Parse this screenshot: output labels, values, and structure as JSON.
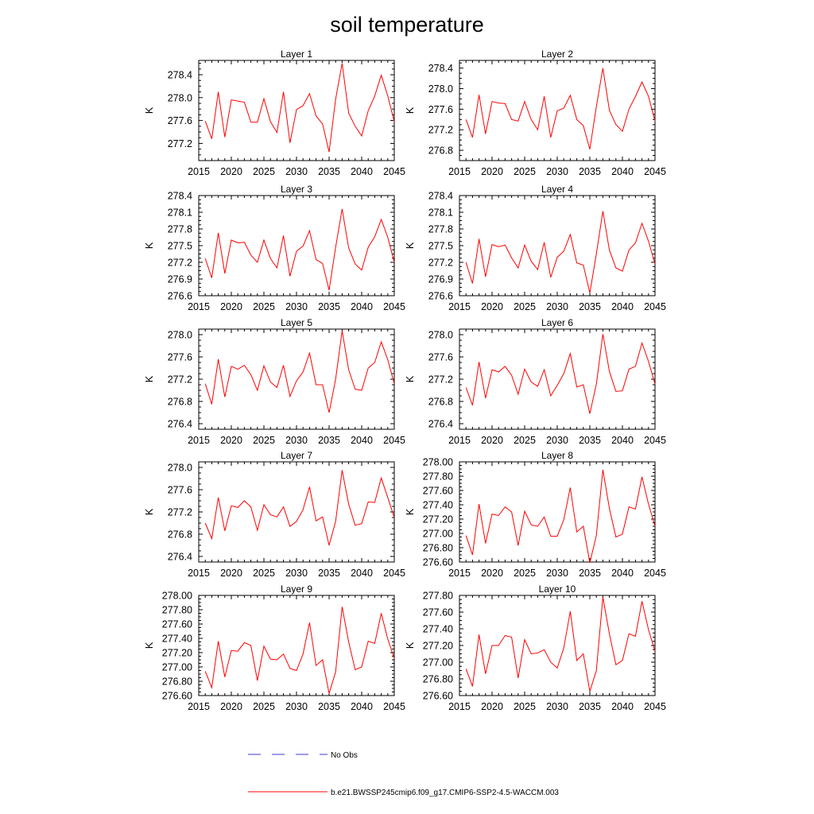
{
  "title": "soil temperature",
  "legend": {
    "items": [
      {
        "label": "No Obs",
        "color": "#3b3bd6",
        "style": "dashed"
      },
      {
        "label": "b.e21.BWSSP245cmip6.f09_g17.CMIP6-SSP2-4.5-WACCM.003",
        "color": "#ff0000",
        "style": "solid"
      }
    ]
  },
  "chart_data": [
    {
      "type": "line",
      "title": "Layer 1",
      "ylabel": "K",
      "xlim": [
        2015,
        2045
      ],
      "ylim": [
        276.9,
        278.65
      ],
      "xticks": [
        2015,
        2020,
        2025,
        2030,
        2035,
        2040,
        2045
      ],
      "xtick_labels": [
        "2015",
        "2020",
        "2025",
        "2030",
        "2035",
        "2040",
        "2045"
      ],
      "yticks": [
        277.2,
        277.6,
        278.0,
        278.4
      ],
      "ytick_labels": [
        "277.2",
        "277.6",
        "278.0",
        "278.4"
      ],
      "x": [
        2016,
        2017,
        2018,
        2019,
        2020,
        2021,
        2022,
        2023,
        2024,
        2025,
        2026,
        2027,
        2028,
        2029,
        2030,
        2031,
        2032,
        2033,
        2034,
        2035,
        2036,
        2037,
        2038,
        2039,
        2040,
        2041,
        2042,
        2043,
        2044,
        2045
      ],
      "series": [
        {
          "color": "#ff0000",
          "values": [
            277.59,
            277.28,
            278.1,
            277.31,
            277.96,
            277.94,
            277.92,
            277.57,
            277.57,
            277.98,
            277.58,
            277.39,
            278.1,
            277.21,
            277.79,
            277.86,
            278.07,
            277.68,
            277.54,
            277.05,
            277.97,
            278.6,
            277.73,
            277.5,
            277.33,
            277.77,
            278.03,
            278.39,
            278.03,
            277.58
          ]
        }
      ]
    },
    {
      "type": "line",
      "title": "Layer 2",
      "ylabel": "K",
      "xlim": [
        2015,
        2045
      ],
      "ylim": [
        276.6,
        278.55
      ],
      "xticks": [
        2015,
        2020,
        2025,
        2030,
        2035,
        2040,
        2045
      ],
      "xtick_labels": [
        "2015",
        "2020",
        "2025",
        "2030",
        "2035",
        "2040",
        "2045"
      ],
      "yticks": [
        276.8,
        277.2,
        277.6,
        278.0,
        278.4
      ],
      "ytick_labels": [
        "276.8",
        "277.2",
        "277.6",
        "278.0",
        "278.4"
      ],
      "x": [
        2016,
        2017,
        2018,
        2019,
        2020,
        2021,
        2022,
        2023,
        2024,
        2025,
        2026,
        2027,
        2028,
        2029,
        2030,
        2031,
        2032,
        2033,
        2034,
        2035,
        2036,
        2037,
        2038,
        2039,
        2040,
        2041,
        2042,
        2043,
        2044,
        2045
      ],
      "series": [
        {
          "color": "#ff0000",
          "values": [
            277.4,
            277.05,
            277.88,
            277.12,
            277.75,
            277.72,
            277.71,
            277.4,
            277.37,
            277.75,
            277.4,
            277.2,
            277.85,
            277.05,
            277.57,
            277.62,
            277.87,
            277.4,
            277.28,
            276.82,
            277.65,
            278.4,
            277.58,
            277.3,
            277.17,
            277.6,
            277.85,
            278.13,
            277.85,
            277.37
          ]
        }
      ]
    },
    {
      "type": "line",
      "title": "Layer 3",
      "ylabel": "K",
      "xlim": [
        2015,
        2045
      ],
      "ylim": [
        276.6,
        278.4
      ],
      "xticks": [
        2015,
        2020,
        2025,
        2030,
        2035,
        2040,
        2045
      ],
      "xtick_labels": [
        "2015",
        "2020",
        "2025",
        "2030",
        "2035",
        "2040",
        "2045"
      ],
      "yticks": [
        276.6,
        276.9,
        277.2,
        277.5,
        277.8,
        278.1,
        278.4
      ],
      "ytick_labels": [
        "276.6",
        "276.9",
        "277.2",
        "277.5",
        "277.8",
        "278.1",
        "278.4"
      ],
      "x": [
        2016,
        2017,
        2018,
        2019,
        2020,
        2021,
        2022,
        2023,
        2024,
        2025,
        2026,
        2027,
        2028,
        2029,
        2030,
        2031,
        2032,
        2033,
        2034,
        2035,
        2036,
        2037,
        2038,
        2039,
        2040,
        2041,
        2042,
        2043,
        2044,
        2045
      ],
      "series": [
        {
          "color": "#ff0000",
          "values": [
            277.27,
            276.92,
            277.73,
            277.0,
            277.6,
            277.55,
            277.56,
            277.33,
            277.2,
            277.6,
            277.27,
            277.1,
            277.68,
            276.95,
            277.4,
            277.49,
            277.77,
            277.25,
            277.18,
            276.7,
            277.47,
            278.16,
            277.46,
            277.17,
            277.06,
            277.47,
            277.66,
            277.97,
            277.65,
            277.2
          ]
        }
      ]
    },
    {
      "type": "line",
      "title": "Layer 4",
      "ylabel": "K",
      "xlim": [
        2015,
        2045
      ],
      "ylim": [
        276.6,
        278.4
      ],
      "xticks": [
        2015,
        2020,
        2025,
        2030,
        2035,
        2040,
        2045
      ],
      "xtick_labels": [
        "2015",
        "2020",
        "2025",
        "2030",
        "2035",
        "2040",
        "2045"
      ],
      "yticks": [
        276.6,
        276.9,
        277.2,
        277.5,
        277.8,
        278.1,
        278.4
      ],
      "ytick_labels": [
        "276.6",
        "276.9",
        "277.2",
        "277.5",
        "277.8",
        "278.1",
        "278.4"
      ],
      "x": [
        2016,
        2017,
        2018,
        2019,
        2020,
        2021,
        2022,
        2023,
        2024,
        2025,
        2026,
        2027,
        2028,
        2029,
        2030,
        2031,
        2032,
        2033,
        2034,
        2035,
        2036,
        2037,
        2038,
        2039,
        2040,
        2041,
        2042,
        2043,
        2044,
        2045
      ],
      "series": [
        {
          "color": "#ff0000",
          "values": [
            277.2,
            276.82,
            277.62,
            276.94,
            277.52,
            277.48,
            277.51,
            277.28,
            277.1,
            277.51,
            277.22,
            277.07,
            277.56,
            276.93,
            277.29,
            277.4,
            277.7,
            277.19,
            277.15,
            276.65,
            277.35,
            278.12,
            277.42,
            277.1,
            277.04,
            277.42,
            277.55,
            277.9,
            277.58,
            277.17
          ]
        }
      ]
    },
    {
      "type": "line",
      "title": "Layer 5",
      "ylabel": "K",
      "xlim": [
        2015,
        2045
      ],
      "ylim": [
        276.3,
        278.1
      ],
      "xticks": [
        2015,
        2020,
        2025,
        2030,
        2035,
        2040,
        2045
      ],
      "xtick_labels": [
        "2015",
        "2020",
        "2025",
        "2030",
        "2035",
        "2040",
        "2045"
      ],
      "yticks": [
        276.4,
        276.8,
        277.2,
        277.6,
        278.0
      ],
      "ytick_labels": [
        "276.4",
        "276.8",
        "277.2",
        "277.6",
        "278.0"
      ],
      "x": [
        2016,
        2017,
        2018,
        2019,
        2020,
        2021,
        2022,
        2023,
        2024,
        2025,
        2026,
        2027,
        2028,
        2029,
        2030,
        2031,
        2032,
        2033,
        2034,
        2035,
        2036,
        2037,
        2038,
        2039,
        2040,
        2041,
        2042,
        2043,
        2044,
        2045
      ],
      "series": [
        {
          "color": "#ff0000",
          "values": [
            277.12,
            276.75,
            277.56,
            276.88,
            277.43,
            277.38,
            277.45,
            277.28,
            277.0,
            277.44,
            277.15,
            277.05,
            277.45,
            276.89,
            277.17,
            277.33,
            277.67,
            277.1,
            277.1,
            276.6,
            277.2,
            278.07,
            277.37,
            277.02,
            277.0,
            277.4,
            277.5,
            277.87,
            277.55,
            277.12
          ]
        }
      ]
    },
    {
      "type": "line",
      "title": "Layer 6",
      "ylabel": "K",
      "xlim": [
        2015,
        2045
      ],
      "ylim": [
        276.3,
        278.1
      ],
      "xticks": [
        2015,
        2020,
        2025,
        2030,
        2035,
        2040,
        2045
      ],
      "xtick_labels": [
        "2015",
        "2020",
        "2025",
        "2030",
        "2035",
        "2040",
        "2045"
      ],
      "yticks": [
        276.4,
        276.8,
        277.2,
        277.6,
        278.0
      ],
      "ytick_labels": [
        "276.4",
        "276.8",
        "277.2",
        "277.6",
        "278.0"
      ],
      "x": [
        2016,
        2017,
        2018,
        2019,
        2020,
        2021,
        2022,
        2023,
        2024,
        2025,
        2026,
        2027,
        2028,
        2029,
        2030,
        2031,
        2032,
        2033,
        2034,
        2035,
        2036,
        2037,
        2038,
        2039,
        2040,
        2041,
        2042,
        2043,
        2044,
        2045
      ],
      "series": [
        {
          "color": "#ff0000",
          "values": [
            277.05,
            276.73,
            277.51,
            276.86,
            277.37,
            277.33,
            277.43,
            277.27,
            276.93,
            277.38,
            277.15,
            277.07,
            277.37,
            276.9,
            277.09,
            277.3,
            277.66,
            277.06,
            277.1,
            276.58,
            277.11,
            278.01,
            277.34,
            276.98,
            276.99,
            277.38,
            277.43,
            277.85,
            277.52,
            277.11
          ]
        }
      ]
    },
    {
      "type": "line",
      "title": "Layer 7",
      "ylabel": "K",
      "xlim": [
        2015,
        2045
      ],
      "ylim": [
        276.3,
        278.1
      ],
      "xticks": [
        2015,
        2020,
        2025,
        2030,
        2035,
        2040,
        2045
      ],
      "xtick_labels": [
        "2015",
        "2020",
        "2025",
        "2030",
        "2035",
        "2040",
        "2045"
      ],
      "yticks": [
        276.4,
        276.8,
        277.2,
        277.6,
        278.0
      ],
      "ytick_labels": [
        "276.4",
        "276.8",
        "277.2",
        "277.6",
        "278.0"
      ],
      "x": [
        2016,
        2017,
        2018,
        2019,
        2020,
        2021,
        2022,
        2023,
        2024,
        2025,
        2026,
        2027,
        2028,
        2029,
        2030,
        2031,
        2032,
        2033,
        2034,
        2035,
        2036,
        2037,
        2038,
        2039,
        2040,
        2041,
        2042,
        2043,
        2044,
        2045
      ],
      "series": [
        {
          "color": "#ff0000",
          "values": [
            277.0,
            276.72,
            277.46,
            276.86,
            277.31,
            277.28,
            277.4,
            277.29,
            276.87,
            277.33,
            277.15,
            277.11,
            277.29,
            276.94,
            277.03,
            277.24,
            277.65,
            277.04,
            277.11,
            276.6,
            277.03,
            277.95,
            277.34,
            276.96,
            276.99,
            277.38,
            277.37,
            277.81,
            277.46,
            277.1
          ]
        }
      ]
    },
    {
      "type": "line",
      "title": "Layer 8",
      "ylabel": "K",
      "xlim": [
        2015,
        2045
      ],
      "ylim": [
        276.6,
        278.0
      ],
      "xticks": [
        2015,
        2020,
        2025,
        2030,
        2035,
        2040,
        2045
      ],
      "xtick_labels": [
        "2015",
        "2020",
        "2025",
        "2030",
        "2035",
        "2040",
        "2045"
      ],
      "yticks": [
        276.6,
        276.8,
        277.0,
        277.2,
        277.4,
        277.6,
        277.8,
        278.0
      ],
      "ytick_labels": [
        "276.60",
        "276.80",
        "277.00",
        "277.20",
        "277.40",
        "277.60",
        "277.80",
        "278.00"
      ],
      "x": [
        2016,
        2017,
        2018,
        2019,
        2020,
        2021,
        2022,
        2023,
        2024,
        2025,
        2026,
        2027,
        2028,
        2029,
        2030,
        2031,
        2032,
        2033,
        2034,
        2035,
        2036,
        2037,
        2038,
        2039,
        2040,
        2041,
        2042,
        2043,
        2044,
        2045
      ],
      "series": [
        {
          "color": "#ff0000",
          "values": [
            276.97,
            276.7,
            277.41,
            276.86,
            277.27,
            277.25,
            277.37,
            277.3,
            276.83,
            277.31,
            277.12,
            277.1,
            277.23,
            276.96,
            276.96,
            277.19,
            277.64,
            277.02,
            277.1,
            276.59,
            276.97,
            277.89,
            277.35,
            276.95,
            276.99,
            277.37,
            277.34,
            277.79,
            277.41,
            277.1
          ]
        }
      ]
    },
    {
      "type": "line",
      "title": "Layer 9",
      "ylabel": "K",
      "xlim": [
        2015,
        2045
      ],
      "ylim": [
        276.6,
        278.0
      ],
      "xticks": [
        2015,
        2020,
        2025,
        2030,
        2035,
        2040,
        2045
      ],
      "xtick_labels": [
        "2015",
        "2020",
        "2025",
        "2030",
        "2035",
        "2040",
        "2045"
      ],
      "yticks": [
        276.6,
        276.8,
        277.0,
        277.2,
        277.4,
        277.6,
        277.8,
        278.0
      ],
      "ytick_labels": [
        "276.60",
        "276.80",
        "277.00",
        "277.20",
        "277.40",
        "277.60",
        "277.80",
        "278.00"
      ],
      "x": [
        2016,
        2017,
        2018,
        2019,
        2020,
        2021,
        2022,
        2023,
        2024,
        2025,
        2026,
        2027,
        2028,
        2029,
        2030,
        2031,
        2032,
        2033,
        2034,
        2035,
        2036,
        2037,
        2038,
        2039,
        2040,
        2041,
        2042,
        2043,
        2044,
        2045
      ],
      "series": [
        {
          "color": "#ff0000",
          "values": [
            276.94,
            276.71,
            277.36,
            276.86,
            277.23,
            277.22,
            277.34,
            277.3,
            276.81,
            277.29,
            277.11,
            277.1,
            277.18,
            276.98,
            276.95,
            277.18,
            277.62,
            277.02,
            277.1,
            276.63,
            276.93,
            277.84,
            277.35,
            276.96,
            277.0,
            277.36,
            277.33,
            277.75,
            277.39,
            277.12
          ]
        }
      ]
    },
    {
      "type": "line",
      "title": "Layer 10",
      "ylabel": "K",
      "xlim": [
        2015,
        2045
      ],
      "ylim": [
        276.6,
        277.8
      ],
      "xticks": [
        2015,
        2020,
        2025,
        2030,
        2035,
        2040,
        2045
      ],
      "xtick_labels": [
        "2015",
        "2020",
        "2025",
        "2030",
        "2035",
        "2040",
        "2045"
      ],
      "yticks": [
        276.6,
        276.8,
        277.0,
        277.2,
        277.4,
        277.6,
        277.8
      ],
      "ytick_labels": [
        "276.60",
        "276.80",
        "277.00",
        "277.20",
        "277.40",
        "277.60",
        "277.80"
      ],
      "x": [
        2016,
        2017,
        2018,
        2019,
        2020,
        2021,
        2022,
        2023,
        2024,
        2025,
        2026,
        2027,
        2028,
        2029,
        2030,
        2031,
        2032,
        2033,
        2034,
        2035,
        2036,
        2037,
        2038,
        2039,
        2040,
        2041,
        2042,
        2043,
        2044,
        2045
      ],
      "series": [
        {
          "color": "#ff0000",
          "values": [
            276.92,
            276.71,
            277.33,
            276.86,
            277.2,
            277.2,
            277.32,
            277.3,
            276.81,
            277.27,
            277.1,
            277.11,
            277.15,
            277.0,
            276.93,
            277.17,
            277.61,
            277.02,
            277.1,
            276.65,
            276.9,
            277.78,
            277.34,
            276.97,
            277.02,
            277.34,
            277.31,
            277.73,
            277.39,
            277.13
          ]
        }
      ]
    }
  ]
}
